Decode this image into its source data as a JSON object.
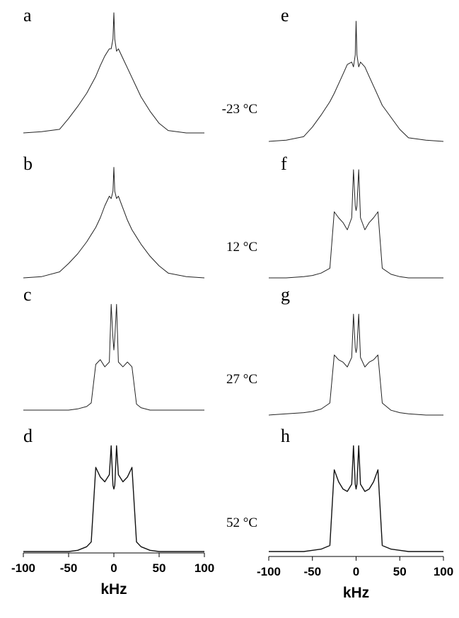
{
  "chart_data": [
    {
      "type": "line",
      "xlabel": "kHz",
      "xlim": [
        -100,
        100
      ],
      "xticks": [
        -100,
        -50,
        0,
        50,
        100
      ],
      "x": [
        -100,
        -80,
        -60,
        -50,
        -40,
        -30,
        -25,
        -20,
        -15,
        -10,
        -5,
        -3,
        -1,
        0,
        1,
        3,
        5,
        10,
        15,
        20,
        25,
        30,
        40,
        50,
        60,
        80,
        100
      ],
      "series": [
        {
          "name": "a",
          "color": "#222222",
          "values": [
            0,
            1,
            3,
            12,
            22,
            33,
            40,
            47,
            56,
            64,
            70,
            70,
            78,
            100,
            78,
            68,
            70,
            62,
            54,
            46,
            38,
            30,
            18,
            8,
            2,
            0,
            0
          ]
        },
        {
          "name": "b",
          "color": "#222222",
          "values": [
            0,
            1,
            5,
            12,
            20,
            30,
            36,
            42,
            50,
            60,
            68,
            66,
            72,
            92,
            72,
            66,
            68,
            58,
            48,
            40,
            34,
            28,
            18,
            10,
            4,
            1,
            0
          ]
        },
        {
          "name": "c",
          "color": "#222222",
          "values": [
            0,
            0,
            0,
            0,
            1,
            3,
            6,
            38,
            42,
            36,
            40,
            88,
            60,
            50,
            60,
            88,
            40,
            36,
            40,
            36,
            5,
            2,
            0,
            0,
            0,
            0,
            0
          ]
        },
        {
          "name": "d",
          "color": "#111111",
          "values": [
            0,
            0,
            0,
            0,
            1,
            4,
            8,
            70,
            62,
            58,
            64,
            88,
            55,
            52,
            55,
            88,
            64,
            58,
            62,
            70,
            8,
            4,
            1,
            0,
            0,
            0,
            0
          ]
        }
      ]
    },
    {
      "type": "line",
      "xlabel": "kHz",
      "xlim": [
        -100,
        100
      ],
      "xticks": [
        -100,
        -50,
        0,
        50,
        100
      ],
      "x": [
        -100,
        -80,
        -60,
        -50,
        -40,
        -30,
        -25,
        -20,
        -15,
        -10,
        -5,
        -3,
        -1,
        0,
        1,
        3,
        5,
        10,
        15,
        20,
        25,
        30,
        40,
        50,
        60,
        80,
        100
      ],
      "series": [
        {
          "name": "e",
          "color": "#222222",
          "values": [
            0,
            1,
            4,
            12,
            22,
            33,
            40,
            48,
            56,
            64,
            66,
            62,
            72,
            100,
            72,
            62,
            66,
            62,
            54,
            46,
            38,
            30,
            20,
            10,
            3,
            1,
            0
          ]
        },
        {
          "name": "f",
          "color": "#222222",
          "values": [
            0,
            0,
            1,
            2,
            4,
            8,
            55,
            50,
            46,
            40,
            50,
            90,
            60,
            56,
            60,
            90,
            50,
            40,
            46,
            50,
            55,
            8,
            3,
            1,
            0,
            0,
            0
          ]
        },
        {
          "name": "g",
          "color": "#222222",
          "values": [
            0,
            1,
            2,
            3,
            5,
            10,
            50,
            46,
            44,
            40,
            48,
            84,
            56,
            52,
            56,
            84,
            48,
            40,
            44,
            46,
            50,
            10,
            4,
            2,
            1,
            0,
            0
          ]
        },
        {
          "name": "h",
          "color": "#111111",
          "values": [
            0,
            0,
            0,
            1,
            2,
            5,
            68,
            58,
            52,
            50,
            56,
            88,
            56,
            52,
            56,
            88,
            56,
            50,
            52,
            58,
            68,
            5,
            2,
            1,
            0,
            0,
            0
          ]
        }
      ]
    }
  ],
  "temperatures": [
    "-23 °C",
    "12 °C",
    "27 °C",
    "52 °C"
  ]
}
